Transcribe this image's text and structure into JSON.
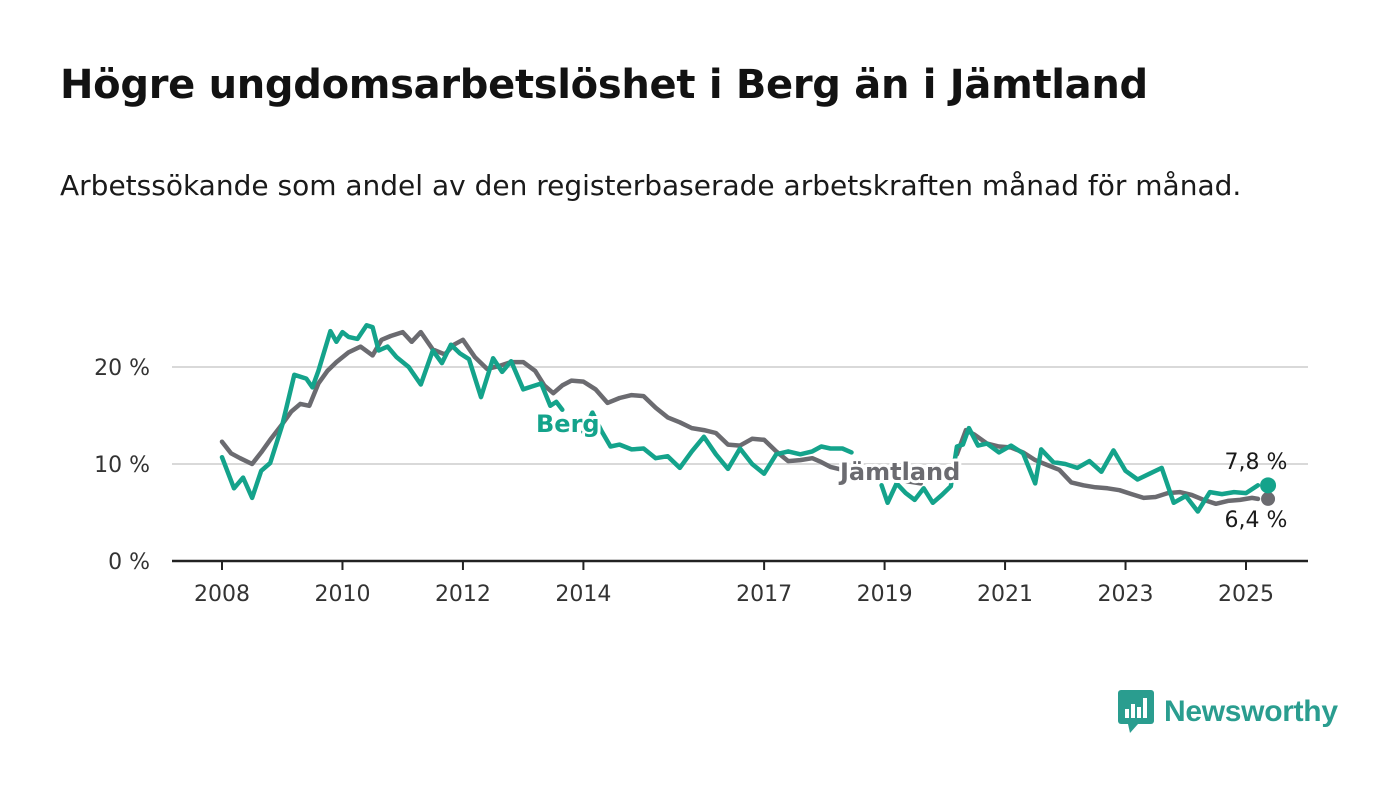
{
  "title": "Högre ungdomsarbetslöshet i Berg än i Jämtland",
  "subtitle": "Arbetssökande som andel av den registerbaserade arbetskraften månad för månad.",
  "logo": {
    "text": "Newsworthy",
    "icon": "newsworthy-logo-icon"
  },
  "colors": {
    "berg": "#14a38b",
    "jamtland": "#6b6b70",
    "grid": "#d9d9d9",
    "axis": "#222222"
  },
  "chart_data": {
    "type": "line",
    "xlim": [
      2008,
      2025.5
    ],
    "ylim": [
      0,
      20
    ],
    "y_ticks": [
      0,
      10,
      20
    ],
    "y_tick_labels": [
      "0 %",
      "10 %",
      "20 %"
    ],
    "x_ticks": [
      2008,
      2010,
      2012,
      2014,
      2017,
      2019,
      2021,
      2023,
      2025
    ],
    "x_tick_labels": [
      "2008",
      "2010",
      "2012",
      "2014",
      "2017",
      "2019",
      "2021",
      "2023",
      "2025"
    ],
    "grid": "horizontal",
    "series": [
      {
        "name": "Berg",
        "end_label": "7,8 %",
        "x": [
          2008.0,
          2008.2,
          2008.35,
          2008.5,
          2008.65,
          2008.8,
          2009.0,
          2009.2,
          2009.4,
          2009.5,
          2009.6,
          2009.8,
          2009.9,
          2010.0,
          2010.1,
          2010.25,
          2010.4,
          2010.5,
          2010.6,
          2010.75,
          2010.9,
          2011.1,
          2011.3,
          2011.5,
          2011.65,
          2011.8,
          2011.95,
          2012.1,
          2012.3,
          2012.5,
          2012.65,
          2012.8,
          2013.0,
          2013.15,
          2013.3,
          2013.45,
          2013.55,
          2013.65,
          null,
          2014.0,
          2014.15,
          2014.3,
          2014.45,
          2014.6,
          2014.8,
          2015.0,
          2015.2,
          2015.4,
          2015.6,
          2015.8,
          2016.0,
          2016.2,
          2016.4,
          2016.6,
          2016.8,
          2017.0,
          2017.2,
          2017.4,
          2017.6,
          2017.8,
          2017.95,
          2018.1,
          2018.3,
          2018.45,
          null,
          2018.95,
          2019.05,
          2019.2,
          2019.35,
          2019.5,
          2019.65,
          2019.8,
          2019.95,
          2020.1,
          2020.2,
          2020.3,
          2020.4,
          2020.55,
          2020.7,
          2020.9,
          2021.1,
          2021.3,
          2021.5,
          2021.6,
          2021.8,
          2022.0,
          2022.2,
          2022.4,
          2022.6,
          2022.8,
          2023.0,
          2023.2,
          2023.4,
          2023.6,
          2023.8,
          2024.0,
          2024.2,
          2024.4,
          2024.6,
          2024.8,
          2025.0,
          2025.2
        ],
        "y": [
          10.7,
          7.5,
          8.6,
          6.5,
          9.3,
          10.1,
          14.0,
          19.2,
          18.8,
          17.9,
          19.6,
          23.7,
          22.6,
          23.6,
          23.1,
          22.9,
          24.3,
          24.1,
          21.7,
          22.1,
          21.0,
          20.0,
          18.2,
          21.7,
          20.4,
          22.3,
          21.4,
          20.8,
          16.9,
          20.9,
          19.5,
          20.6,
          17.7,
          18.0,
          18.3,
          16.0,
          16.4,
          15.6,
          null,
          13.3,
          15.3,
          13.4,
          11.8,
          12.0,
          11.5,
          11.6,
          10.6,
          10.8,
          9.6,
          11.3,
          12.8,
          11.0,
          9.5,
          11.6,
          10.0,
          9.0,
          11.0,
          11.3,
          11.0,
          11.3,
          11.8,
          11.6,
          11.6,
          11.2,
          null,
          7.8,
          6.0,
          8.0,
          7.0,
          6.3,
          7.5,
          6.0,
          6.8,
          7.7,
          11.8,
          12.0,
          13.7,
          11.9,
          12.1,
          11.2,
          11.9,
          11.1,
          8.0,
          11.5,
          10.2,
          10.0,
          9.6,
          10.3,
          9.2,
          11.4,
          9.3,
          8.4,
          9.0,
          9.6,
          6.0,
          6.7,
          5.1,
          7.1,
          6.9,
          7.1,
          7.0,
          7.8
        ]
      },
      {
        "name": "Jämtland",
        "end_label": "6,4 %",
        "x": [
          2008.0,
          2008.15,
          2008.3,
          2008.5,
          2008.65,
          2008.8,
          2009.0,
          2009.15,
          2009.3,
          2009.45,
          2009.6,
          2009.75,
          2009.9,
          2010.1,
          2010.3,
          2010.5,
          2010.65,
          2010.8,
          2011.0,
          2011.15,
          2011.3,
          2011.5,
          2011.7,
          2011.85,
          2012.0,
          2012.2,
          2012.4,
          2012.6,
          2012.8,
          2013.0,
          2013.2,
          2013.35,
          2013.5,
          2013.65,
          2013.8,
          2014.0,
          2014.2,
          2014.4,
          2014.6,
          2014.8,
          2015.0,
          2015.2,
          2015.4,
          2015.6,
          2015.8,
          2016.0,
          2016.2,
          2016.4,
          2016.6,
          2016.8,
          2017.0,
          2017.2,
          2017.4,
          2017.6,
          2017.8,
          2017.95,
          2018.1,
          2018.3,
          2018.45,
          2018.6,
          null,
          2019.2,
          2019.4,
          2019.6,
          null,
          2020.2,
          2020.35,
          2020.5,
          2020.7,
          2020.9,
          2021.1,
          2021.3,
          2021.5,
          2021.7,
          2021.9,
          2022.1,
          2022.3,
          2022.5,
          2022.7,
          2022.9,
          2023.1,
          2023.3,
          2023.5,
          2023.7,
          2023.9,
          2024.1,
          2024.3,
          2024.5,
          2024.7,
          2024.9,
          2025.1,
          2025.2
        ],
        "y": [
          12.3,
          11.1,
          10.6,
          10.0,
          11.2,
          12.5,
          14.1,
          15.4,
          16.2,
          16.0,
          18.3,
          19.6,
          20.5,
          21.5,
          22.1,
          21.2,
          22.8,
          23.2,
          23.6,
          22.6,
          23.6,
          21.8,
          21.3,
          22.3,
          22.8,
          21.0,
          19.8,
          20.1,
          20.5,
          20.5,
          19.6,
          18.1,
          17.3,
          18.1,
          18.6,
          18.5,
          17.7,
          16.3,
          16.8,
          17.1,
          17.0,
          15.8,
          14.8,
          14.3,
          13.7,
          13.5,
          13.2,
          12.0,
          11.9,
          12.6,
          12.5,
          11.3,
          10.3,
          10.4,
          10.6,
          10.2,
          9.7,
          9.4,
          9.0,
          8.8,
          null,
          8.5,
          8.2,
          8.0,
          null,
          11.0,
          13.5,
          13.0,
          12.1,
          11.8,
          11.7,
          11.2,
          10.4,
          9.9,
          9.4,
          8.1,
          7.8,
          7.6,
          7.5,
          7.3,
          6.9,
          6.5,
          6.6,
          7.0,
          7.1,
          6.8,
          6.3,
          5.9,
          6.2,
          6.3,
          6.5,
          6.4
        ]
      }
    ],
    "inline_labels": [
      "Berg",
      "Jämtland"
    ]
  }
}
